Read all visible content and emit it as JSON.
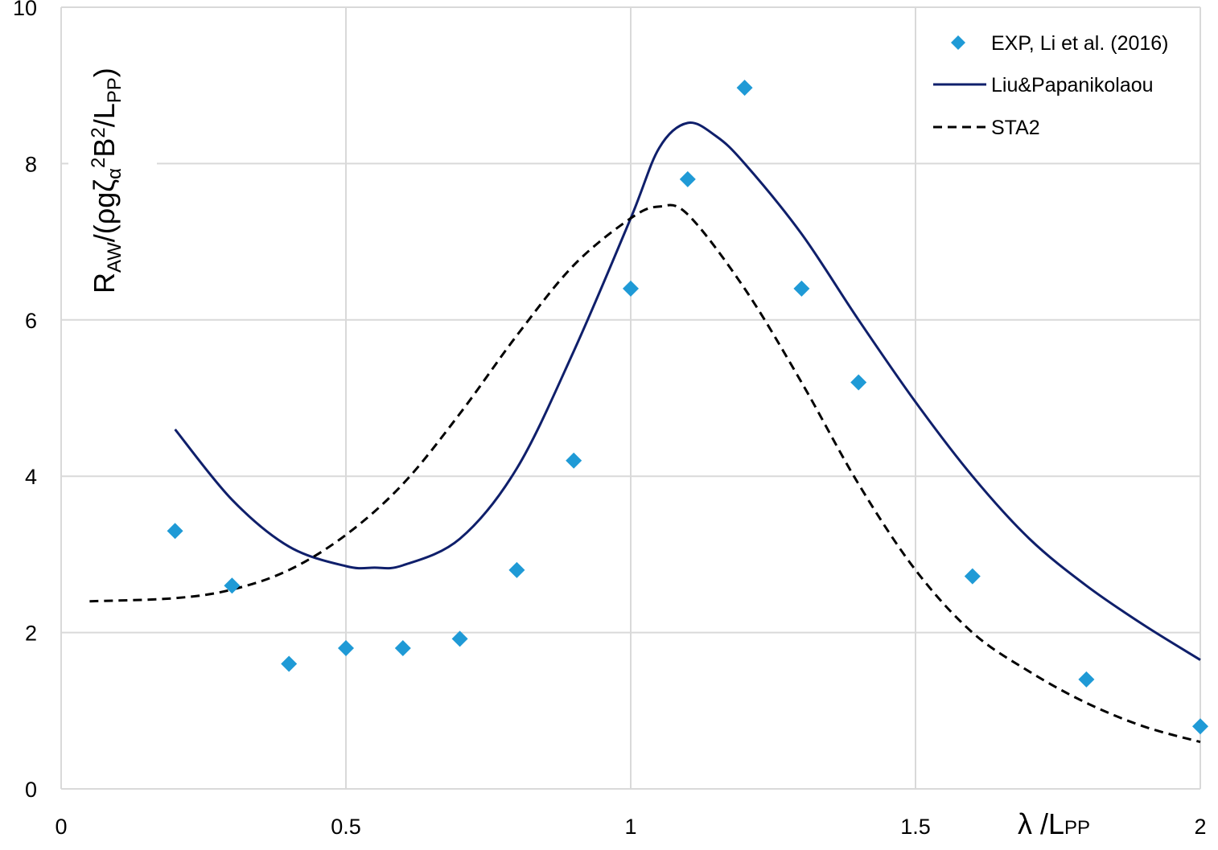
{
  "chart_data": {
    "type": "scatter",
    "title": "",
    "xlabel": "λ /L_PP",
    "ylabel": "R_AW/(ρgζ_α²B²/L_PP)",
    "xlim": [
      0,
      2
    ],
    "ylim": [
      0,
      10
    ],
    "x_ticks": [
      "0",
      "0.5",
      "1",
      "1.5",
      "2"
    ],
    "y_ticks": [
      "0",
      "2",
      "4",
      "6",
      "8",
      "10"
    ],
    "grid": true,
    "legend_position": "top-right",
    "series": [
      {
        "name": "EXP, Li et al. (2016)",
        "type": "scatter",
        "marker": "diamond",
        "color": "#1f9ad6",
        "x": [
          0.2,
          0.3,
          0.4,
          0.5,
          0.6,
          0.7,
          0.8,
          0.9,
          1.0,
          1.1,
          1.2,
          1.3,
          1.4,
          1.6,
          1.8,
          2.0
        ],
        "y": [
          3.3,
          2.6,
          1.6,
          1.8,
          1.8,
          1.92,
          2.8,
          4.2,
          6.4,
          7.8,
          8.97,
          6.4,
          5.2,
          2.72,
          1.4,
          0.8
        ]
      },
      {
        "name": "Liu&Papanikolaou",
        "type": "line",
        "style": "solid",
        "color": "#0f1f6b",
        "x": [
          0.2,
          0.3,
          0.4,
          0.5,
          0.55,
          0.6,
          0.7,
          0.8,
          0.9,
          1.0,
          1.05,
          1.1,
          1.15,
          1.2,
          1.3,
          1.4,
          1.5,
          1.6,
          1.7,
          1.8,
          1.9,
          2.0
        ],
        "y": [
          4.6,
          3.7,
          3.1,
          2.85,
          2.83,
          2.86,
          3.2,
          4.1,
          5.6,
          7.3,
          8.2,
          8.52,
          8.35,
          8.0,
          7.1,
          6.0,
          4.95,
          4.0,
          3.2,
          2.6,
          2.1,
          1.65
        ]
      },
      {
        "name": "STA2",
        "type": "line",
        "style": "dashed",
        "color": "#000000",
        "x": [
          0.05,
          0.2,
          0.3,
          0.4,
          0.5,
          0.6,
          0.7,
          0.8,
          0.9,
          1.0,
          1.05,
          1.1,
          1.2,
          1.3,
          1.4,
          1.5,
          1.6,
          1.7,
          1.8,
          1.9,
          2.0
        ],
        "y": [
          2.4,
          2.44,
          2.55,
          2.8,
          3.25,
          3.9,
          4.8,
          5.8,
          6.7,
          7.3,
          7.45,
          7.35,
          6.4,
          5.2,
          3.9,
          2.8,
          2.0,
          1.5,
          1.1,
          0.8,
          0.6
        ]
      }
    ]
  }
}
